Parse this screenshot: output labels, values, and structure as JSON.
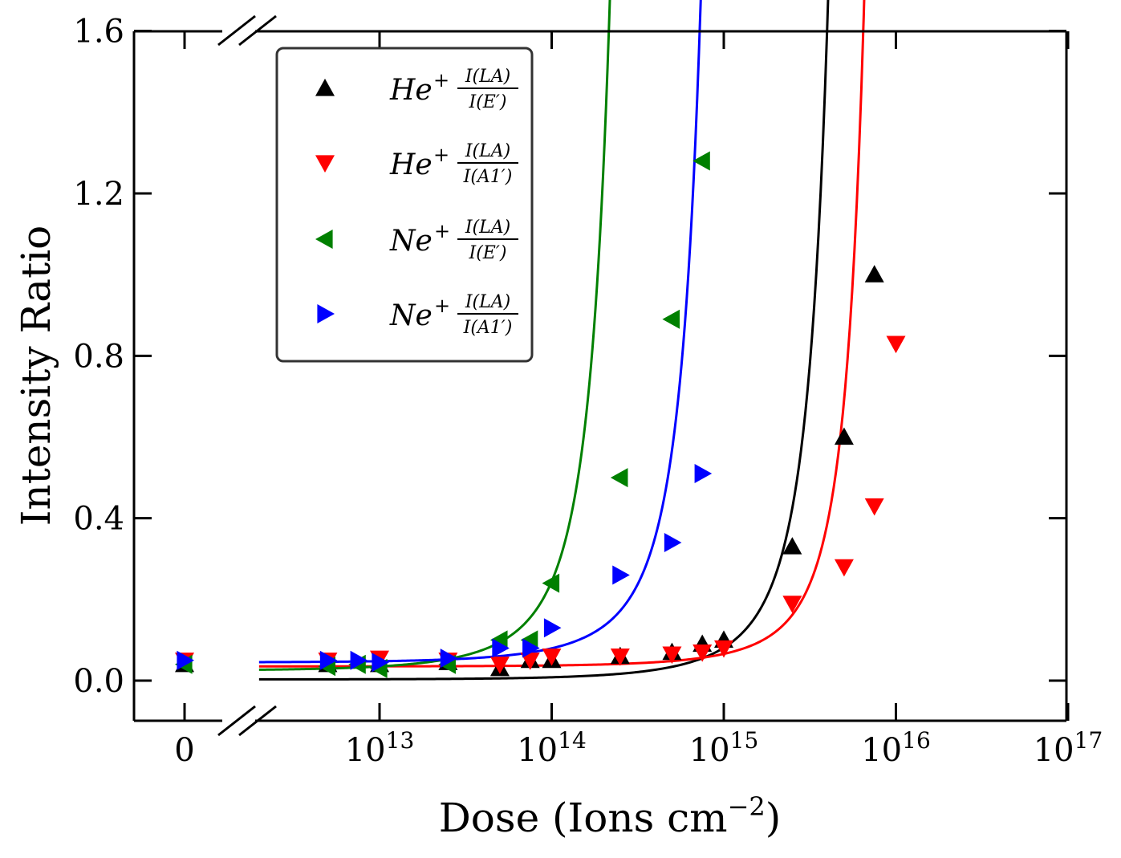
{
  "chart_data": {
    "type": "scatter",
    "xlabel": "Dose (Ions  cm",
    "xlabel_exp": "−2",
    "xlabel_close": ")",
    "ylabel": "Intensity Ratio",
    "ylim": [
      -0.1,
      1.6
    ],
    "yticks": [
      "0.0",
      "0.4",
      "0.8",
      "1.2",
      "1.6"
    ],
    "ytick_values": [
      0.0,
      0.4,
      0.8,
      1.2,
      1.6
    ],
    "xscale": "broken-log",
    "xlim_log": [
      12.03,
      17
    ],
    "xticks": [
      {
        "base": "0",
        "exp": "",
        "value": 0
      },
      {
        "base": "10",
        "exp": "13",
        "value": 10000000000000.0
      },
      {
        "base": "10",
        "exp": "14",
        "value": 100000000000000.0
      },
      {
        "base": "10",
        "exp": "15",
        "value": 1000000000000000.0
      },
      {
        "base": "10",
        "exp": "16",
        "value": 1e+16
      },
      {
        "base": "10",
        "exp": "17",
        "value": 1e+17
      }
    ],
    "legend_position": "top-left",
    "series": [
      {
        "name": "He+ I(LA)/I(E')",
        "ion": "He",
        "numerator": "I(LA)",
        "denominator": "I(E′)",
        "color": "#000000",
        "marker": "triangle-up",
        "points": [
          [
            0,
            0.04
          ],
          [
            5000000000000.0,
            0.04
          ],
          [
            10000000000000.0,
            0.04
          ],
          [
            25000000000000.0,
            0.045
          ],
          [
            50000000000000.0,
            0.03
          ],
          [
            75000000000000.0,
            0.05
          ],
          [
            100000000000000.0,
            0.05
          ],
          [
            250000000000000.0,
            0.06
          ],
          [
            500000000000000.0,
            0.07
          ],
          [
            750000000000000.0,
            0.09
          ],
          [
            1000000000000000.0,
            0.1
          ],
          [
            2500000000000000.0,
            0.33
          ],
          [
            5000000000000000.0,
            0.6
          ],
          [
            7500000000000000.0,
            1.0
          ]
        ],
        "fit": {
          "y0": 0.003,
          "a": 0.06,
          "x0": 1200000000000000.0,
          "xmax": 1.2e+16
        }
      },
      {
        "name": "He+ I(LA)/I(A1')",
        "ion": "He",
        "numerator": "I(LA)",
        "denominator": "I(A1′)",
        "color": "#ff0000",
        "marker": "triangle-down",
        "points": [
          [
            0,
            0.05
          ],
          [
            5000000000000.0,
            0.05
          ],
          [
            10000000000000.0,
            0.055
          ],
          [
            25000000000000.0,
            0.05
          ],
          [
            50000000000000.0,
            0.04
          ],
          [
            75000000000000.0,
            0.05
          ],
          [
            100000000000000.0,
            0.06
          ],
          [
            250000000000000.0,
            0.06
          ],
          [
            500000000000000.0,
            0.065
          ],
          [
            750000000000000.0,
            0.07
          ],
          [
            1000000000000000.0,
            0.08
          ],
          [
            2500000000000000.0,
            0.19
          ],
          [
            5000000000000000.0,
            0.28
          ],
          [
            7500000000000000.0,
            0.43
          ],
          [
            1e+16,
            0.83
          ]
        ],
        "fit": {
          "y0": 0.035,
          "a": 0.04,
          "x0": 1750000000000000.0,
          "xmax": 2.1e+16
        }
      },
      {
        "name": "Ne+ I(LA)/I(E')",
        "ion": "Ne",
        "numerator": "I(LA)",
        "denominator": "I(E′)",
        "color": "#008000",
        "marker": "triangle-left",
        "points": [
          [
            0,
            0.04
          ],
          [
            5000000000000.0,
            0.035
          ],
          [
            7500000000000.0,
            0.04
          ],
          [
            10000000000000.0,
            0.03
          ],
          [
            25000000000000.0,
            0.04
          ],
          [
            50000000000000.0,
            0.1
          ],
          [
            75000000000000.0,
            0.1
          ],
          [
            100000000000000.0,
            0.24
          ],
          [
            250000000000000.0,
            0.5
          ],
          [
            500000000000000.0,
            0.89
          ],
          [
            750000000000000.0,
            1.28
          ]
        ],
        "fit": {
          "y0": 0.025,
          "a": 0.06,
          "x0": 65000000000000.0,
          "xmax": 850000000000000.0
        }
      },
      {
        "name": "Ne+ I(LA)/I(A1')",
        "ion": "Ne",
        "numerator": "I(LA)",
        "denominator": "I(A1′)",
        "color": "#0000ff",
        "marker": "triangle-right",
        "points": [
          [
            0,
            0.05
          ],
          [
            5000000000000.0,
            0.05
          ],
          [
            7500000000000.0,
            0.05
          ],
          [
            10000000000000.0,
            0.045
          ],
          [
            25000000000000.0,
            0.055
          ],
          [
            50000000000000.0,
            0.08
          ],
          [
            75000000000000.0,
            0.08
          ],
          [
            100000000000000.0,
            0.13
          ],
          [
            250000000000000.0,
            0.26
          ],
          [
            500000000000000.0,
            0.34
          ],
          [
            750000000000000.0,
            0.51
          ]
        ],
        "fit": {
          "y0": 0.045,
          "a": 0.06,
          "x0": 220000000000000.0,
          "xmax": 2200000000000000.0
        }
      }
    ]
  }
}
